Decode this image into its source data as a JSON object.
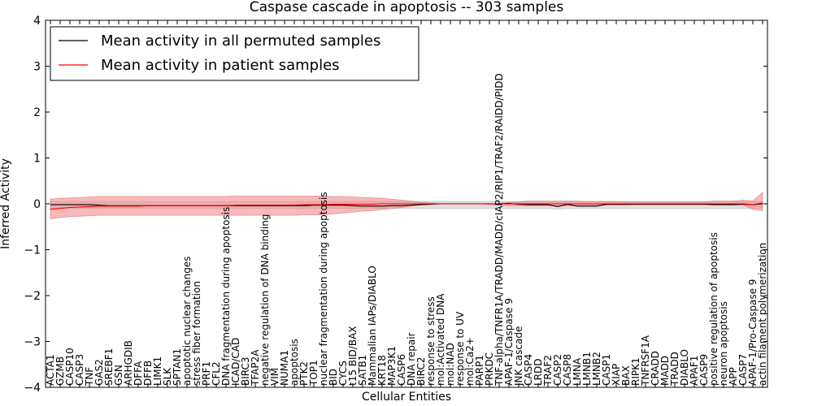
{
  "chart_data": {
    "type": "line",
    "title": "Caspase cascade in apoptosis -- 303 samples",
    "xlabel": "Cellular Entities",
    "ylabel": "Inferred Activity",
    "ylim": [
      -4,
      4
    ],
    "yticks": [
      4,
      3,
      2,
      1,
      0,
      -1,
      -2,
      -3,
      -4
    ],
    "ytick_labels": [
      "4",
      "3",
      "2",
      "1",
      "0",
      "−1",
      "−2",
      "−3",
      "−4"
    ],
    "legend_position": "top-left",
    "categories": [
      "ACTA1",
      "GZMB",
      "CASP10",
      "CASP3",
      "TNF",
      "GAS2",
      "SREBF1",
      "GSN",
      "ARHGDIB",
      "DFFA",
      "DFFB",
      "LIMK1",
      "SLK",
      "SPTAN1",
      "apoptotic nuclear changes",
      "stress fiber formation",
      "PRF1",
      "CFL2",
      "DNA fragmentation during apoptosis",
      "ICAD/CAD",
      "BIRC3",
      "TFAP2A",
      "negative regulation of DNA binding",
      "VIM",
      "NUMA1",
      "apoptosis",
      "PTK2",
      "TOP1",
      "nuclear fragmentation during apoptosis",
      "BID",
      "CYCS",
      "t15 BID/BAX",
      "SATB1",
      "Mammalian IAPs/DIABLO",
      "KRT18",
      "MAP3K1",
      "CASP6",
      "DNA repair",
      "BIRC2",
      "response to stress",
      "mol:Activated DNA",
      "mol:NAD",
      "response to UV",
      "mol:Ca2+",
      "PARP1",
      "PRKDC",
      "TNF-alpha/TNFR1A/TRADD/MADD/cIAP2/RIP1/TRAF2/RAIDD/PIDD",
      "APAF-1/Caspase 9",
      "JNK cascade",
      "CASP4",
      "LRDD",
      "TRAF2",
      "CASP2",
      "CASP8",
      "LMNA",
      "LMNB1",
      "LMNB2",
      "CASP1",
      "XIAP",
      "BAX",
      "RIPK1",
      "TNFRSF1A",
      "CRADD",
      "MADD",
      "TRADD",
      "DIABLO",
      "APAF1",
      "CASP9",
      "positive regulation of apoptosis",
      "neuron apoptosis",
      "APP",
      "CASP7",
      "APAF-1/Pro-Caspase 9",
      "actin filament polymerization"
    ],
    "series": [
      {
        "name": "Mean activity in all permuted samples",
        "color": "#000000",
        "values": [
          -0.02,
          -0.02,
          -0.02,
          -0.02,
          -0.02,
          -0.03,
          -0.04,
          -0.04,
          -0.04,
          -0.04,
          -0.04,
          -0.04,
          -0.04,
          -0.04,
          -0.04,
          -0.04,
          -0.04,
          -0.04,
          -0.04,
          -0.04,
          -0.04,
          -0.04,
          -0.04,
          -0.04,
          -0.04,
          -0.04,
          -0.04,
          -0.03,
          -0.03,
          -0.03,
          -0.03,
          -0.04,
          -0.05,
          -0.05,
          -0.05,
          -0.04,
          -0.04,
          -0.03,
          -0.02,
          -0.01,
          0,
          0,
          0,
          0,
          0,
          0,
          0,
          0.01,
          -0.01,
          -0.02,
          -0.02,
          -0.02,
          -0.06,
          -0.01,
          -0.05,
          -0.05,
          -0.05,
          -0.01,
          -0.01,
          -0.01,
          -0.01,
          -0.01,
          -0.01,
          -0.01,
          -0.01,
          -0.01,
          -0.01,
          -0.01,
          -0.02,
          -0.02,
          -0.02,
          -0.01,
          -0.02,
          0
        ],
        "band_lower": [
          -0.1,
          -0.1,
          -0.1,
          -0.1,
          -0.1,
          -0.1,
          -0.1,
          -0.1,
          -0.1,
          -0.1,
          -0.1,
          -0.1,
          -0.1,
          -0.1,
          -0.1,
          -0.1,
          -0.1,
          -0.1,
          -0.1,
          -0.1,
          -0.1,
          -0.1,
          -0.1,
          -0.1,
          -0.1,
          -0.1,
          -0.1,
          -0.1,
          -0.1,
          -0.1,
          -0.1,
          -0.1,
          -0.1,
          -0.1,
          -0.1,
          -0.1,
          -0.1,
          -0.1,
          -0.1,
          -0.1,
          -0.1,
          -0.1,
          -0.1,
          -0.1,
          -0.1,
          -0.1,
          -0.1,
          -0.1,
          -0.1,
          -0.1,
          -0.1,
          -0.1,
          -0.12,
          -0.1,
          -0.1,
          -0.1,
          -0.1,
          -0.1,
          -0.1,
          -0.1,
          -0.1,
          -0.1,
          -0.1,
          -0.1,
          -0.1,
          -0.1,
          -0.1,
          -0.1,
          -0.1,
          -0.1,
          -0.1,
          -0.1,
          -0.1,
          -0.1
        ],
        "band_upper": [
          0.05,
          0.05,
          0.05,
          0.05,
          0.05,
          0.05,
          0.05,
          0.05,
          0.05,
          0.05,
          0.05,
          0.05,
          0.05,
          0.05,
          0.05,
          0.05,
          0.05,
          0.05,
          0.05,
          0.05,
          0.05,
          0.05,
          0.05,
          0.05,
          0.05,
          0.05,
          0.05,
          0.05,
          0.05,
          0.05,
          0.05,
          0.05,
          0.05,
          0.05,
          0.05,
          0.05,
          0.05,
          0.05,
          0.05,
          0.05,
          0.05,
          0.05,
          0.05,
          0.05,
          0.05,
          0.05,
          0.05,
          0.05,
          0.05,
          0.05,
          0.05,
          0.05,
          0.05,
          0.05,
          0.05,
          0.05,
          0.05,
          0.05,
          0.05,
          0.05,
          0.05,
          0.05,
          0.05,
          0.05,
          0.05,
          0.05,
          0.05,
          0.05,
          0.05,
          0.05,
          0.05,
          0.05,
          0.05,
          0.05
        ]
      },
      {
        "name": "Mean activity in patient samples",
        "color": "#ff0000",
        "values": [
          -0.12,
          -0.1,
          -0.08,
          -0.07,
          -0.06,
          -0.05,
          -0.05,
          -0.05,
          -0.05,
          -0.05,
          -0.04,
          -0.04,
          -0.04,
          -0.04,
          -0.04,
          -0.04,
          -0.04,
          -0.04,
          -0.04,
          -0.03,
          -0.03,
          -0.03,
          -0.03,
          -0.03,
          -0.03,
          -0.03,
          -0.02,
          -0.02,
          -0.02,
          -0.01,
          -0.01,
          -0.01,
          -0.01,
          -0.01,
          0,
          0,
          0,
          0,
          0,
          0,
          0,
          0,
          0,
          0,
          0,
          0,
          0,
          0,
          0,
          0,
          0,
          0,
          0,
          0,
          0,
          0,
          0,
          0,
          0,
          0,
          0,
          0,
          0,
          0,
          0,
          0,
          0,
          0,
          0,
          0,
          0,
          0,
          -0.02,
          0.02
        ],
        "band_lower": [
          -0.33,
          -0.3,
          -0.28,
          -0.27,
          -0.26,
          -0.25,
          -0.25,
          -0.25,
          -0.25,
          -0.25,
          -0.25,
          -0.25,
          -0.25,
          -0.25,
          -0.25,
          -0.25,
          -0.25,
          -0.25,
          -0.25,
          -0.25,
          -0.25,
          -0.25,
          -0.25,
          -0.25,
          -0.25,
          -0.25,
          -0.24,
          -0.24,
          -0.24,
          -0.22,
          -0.2,
          -0.18,
          -0.16,
          -0.15,
          -0.12,
          -0.1,
          -0.08,
          -0.05,
          -0.02,
          -0.01,
          0,
          0,
          0,
          0,
          0,
          -0.02,
          -0.03,
          -0.04,
          -0.04,
          -0.04,
          -0.04,
          -0.04,
          -0.04,
          -0.04,
          -0.04,
          -0.04,
          -0.03,
          -0.03,
          -0.03,
          -0.03,
          -0.02,
          -0.02,
          -0.02,
          -0.02,
          -0.02,
          -0.02,
          -0.02,
          -0.02,
          -0.02,
          -0.02,
          -0.02,
          -0.02,
          -0.12,
          -0.15
        ],
        "band_upper": [
          0.1,
          0.12,
          0.13,
          0.14,
          0.15,
          0.16,
          0.16,
          0.16,
          0.16,
          0.16,
          0.16,
          0.16,
          0.16,
          0.16,
          0.16,
          0.16,
          0.16,
          0.16,
          0.16,
          0.17,
          0.17,
          0.17,
          0.17,
          0.17,
          0.17,
          0.17,
          0.17,
          0.17,
          0.17,
          0.16,
          0.16,
          0.15,
          0.14,
          0.13,
          0.12,
          0.1,
          0.08,
          0.06,
          0.03,
          0.02,
          0.01,
          0.01,
          0.01,
          0.01,
          0.01,
          0.01,
          0.01,
          0.03,
          0.04,
          0.06,
          0.06,
          0.06,
          0.06,
          0.06,
          0.06,
          0.05,
          0.05,
          0.05,
          0.05,
          0.04,
          0.04,
          0.04,
          0.04,
          0.04,
          0.04,
          0.04,
          0.04,
          0.04,
          0.06,
          0.06,
          0.06,
          0.08,
          0.06,
          0.25
        ]
      }
    ]
  }
}
